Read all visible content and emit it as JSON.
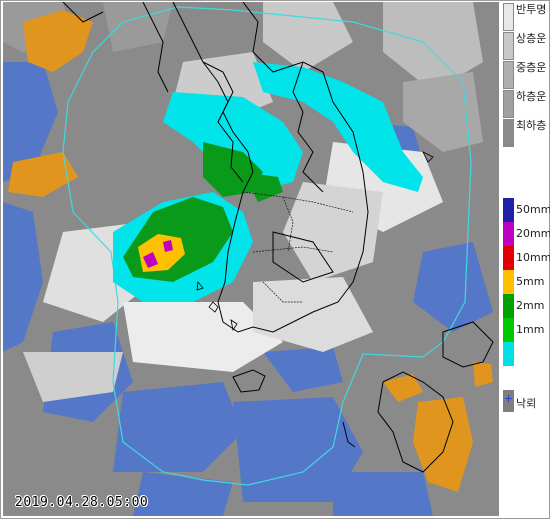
{
  "timestamp": "2019.04.28.05:00",
  "legend": {
    "cloud_levels": [
      {
        "label": "반투명",
        "color": "#e8e8e8"
      },
      {
        "label": "상층운",
        "color": "#c8c8c8"
      },
      {
        "label": "중층운",
        "color": "#b0b0b0"
      },
      {
        "label": "하층운",
        "color": "#a0a0a0"
      },
      {
        "label": "최하층",
        "color": "#8a8a8a"
      }
    ],
    "rain_levels": [
      {
        "label": "50mm",
        "color": "#1f1fa8"
      },
      {
        "label": "20mm",
        "color": "#c000c0"
      },
      {
        "label": "10mm",
        "color": "#e00000"
      },
      {
        "label": "5mm",
        "color": "#ffc000"
      },
      {
        "label": "2mm",
        "color": "#00a000"
      },
      {
        "label": "1mm",
        "color": "#00c800"
      },
      {
        "label": "",
        "color": "#00e0e8"
      }
    ],
    "lightning": {
      "symbol": "+",
      "label": "낙뢰"
    }
  },
  "colors": {
    "sea_clear": "#4f74c8",
    "cloud_dark": "#7f7f7f",
    "cloud_mid": "#a9a9a9",
    "cloud_light": "#d9d9d9",
    "radar_cyan": "#00e4ea",
    "radar_green": "#0a9a1a",
    "orange_cloud": "#e0961e",
    "radar_range": "#40d8e0"
  }
}
